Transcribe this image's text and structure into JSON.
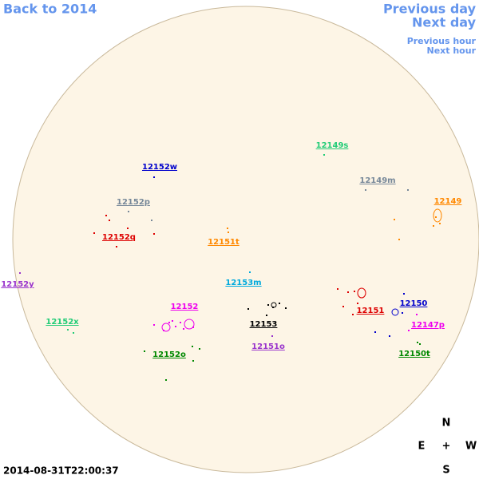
{
  "navigation": {
    "back_year": "Back to 2014",
    "previous_day": "Previous day",
    "next_day": "Next day",
    "previous_hour": "Previous hour",
    "next_hour": "Next hour"
  },
  "regions": [
    {
      "label": "12149s",
      "color": "#22cc77"
    },
    {
      "label": "12152w",
      "color": "#0000cc"
    },
    {
      "label": "12149m",
      "color": "#778899"
    },
    {
      "label": "12152p",
      "color": "#778899"
    },
    {
      "label": "12149",
      "color": "#ff8800"
    },
    {
      "label": "12152q",
      "color": "#dd0000"
    },
    {
      "label": "12151t",
      "color": "#ff8800"
    },
    {
      "label": "12152y",
      "color": "#9933cc"
    },
    {
      "label": "12153m",
      "color": "#00aadd"
    },
    {
      "label": "12152",
      "color": "#ee00ee"
    },
    {
      "label": "12151",
      "color": "#dd0000"
    },
    {
      "label": "12150",
      "color": "#0000cc"
    },
    {
      "label": "12152x",
      "color": "#22cc77"
    },
    {
      "label": "12153",
      "color": "#000000"
    },
    {
      "label": "12147p",
      "color": "#ee00ee"
    },
    {
      "label": "12151o",
      "color": "#9933cc"
    },
    {
      "label": "12152o",
      "color": "#008800"
    },
    {
      "label": "12150t",
      "color": "#008800"
    }
  ],
  "compass": {
    "north": "N",
    "east": "E",
    "center": "+",
    "west": "W",
    "south": "S"
  },
  "timestamp": "2014-08-31T22:00:37"
}
